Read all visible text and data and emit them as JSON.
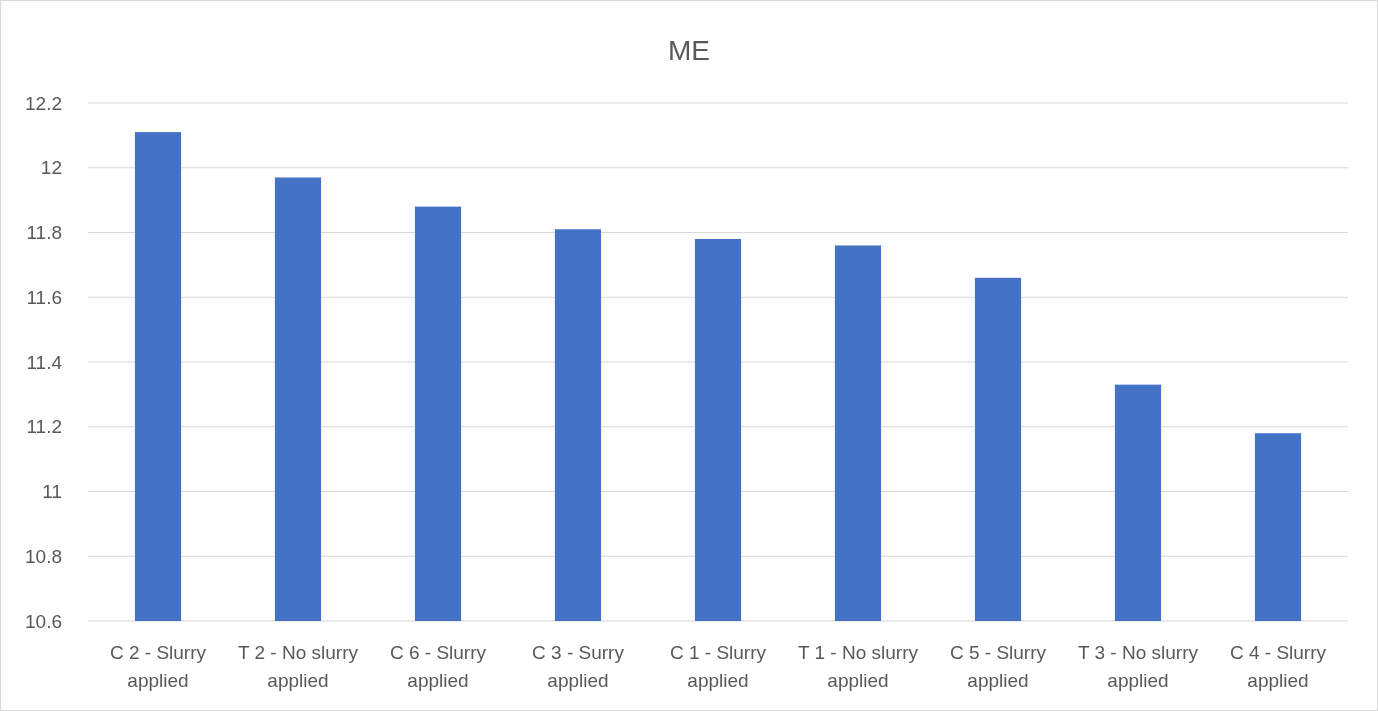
{
  "chart_data": {
    "type": "bar",
    "title": "ME",
    "categories": [
      "C 2 - Slurry applied",
      "T 2 - No slurry applied",
      "C 6 - Slurry applied",
      "C 3 - Surry applied",
      "C 1 - Slurry applied",
      "T 1 - No slurry applied",
      "C 5 - Slurry applied",
      "T 3 - No slurry applied",
      "C 4 - Slurry applied"
    ],
    "values": [
      12.11,
      11.97,
      11.88,
      11.81,
      11.78,
      11.76,
      11.66,
      11.33,
      11.18
    ],
    "color": "#4472c4",
    "ylim": [
      10.6,
      12.2
    ],
    "yticks": [
      {
        "value": 10.6,
        "label": "10.6"
      },
      {
        "value": 10.8,
        "label": "10.8"
      },
      {
        "value": 11,
        "label": "11"
      },
      {
        "value": 11.2,
        "label": "11.2"
      },
      {
        "value": 11.4,
        "label": "11.4"
      },
      {
        "value": 11.6,
        "label": "11.6"
      },
      {
        "value": 11.8,
        "label": "11.8"
      },
      {
        "value": 12,
        "label": "12"
      },
      {
        "value": 12.2,
        "label": "12.2"
      }
    ],
    "grid": "y"
  }
}
